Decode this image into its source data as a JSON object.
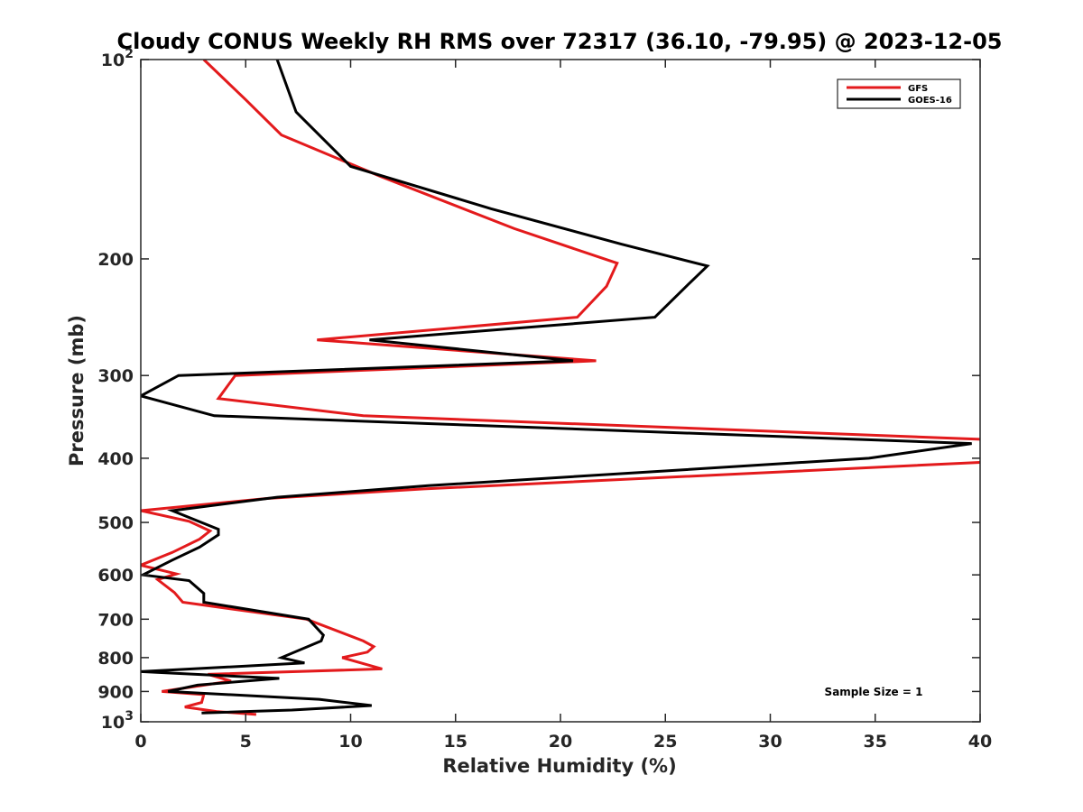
{
  "chart_data": {
    "type": "line",
    "title": "Cloudy CONUS Weekly RH RMS over 72317 (36.10, -79.95) @ 2023-12-05",
    "xlabel": "Relative Humidity (%)",
    "ylabel": "Pressure (mb)",
    "xlim": [
      0,
      40
    ],
    "ylim": [
      100,
      1000
    ],
    "yscale": "log",
    "y_reversed": true,
    "grid": false,
    "legend_position": "top-right",
    "x_ticks": [
      0,
      5,
      10,
      15,
      20,
      25,
      30,
      35,
      40
    ],
    "y_ticks": [
      {
        "value": 100,
        "base": "10",
        "exp": "2"
      },
      {
        "value": 200,
        "label": "200"
      },
      {
        "value": 300,
        "label": "300"
      },
      {
        "value": 400,
        "label": "400"
      },
      {
        "value": 500,
        "label": "500"
      },
      {
        "value": 600,
        "label": "600"
      },
      {
        "value": 700,
        "label": "700"
      },
      {
        "value": 800,
        "label": "800"
      },
      {
        "value": 900,
        "label": "900"
      },
      {
        "value": 1000,
        "base": "10",
        "exp": "3"
      }
    ],
    "annotation": "Sample Size = 1",
    "series": [
      {
        "name": "GFS",
        "color": "#e31a1c",
        "points": [
          [
            3.0,
            100
          ],
          [
            5.0,
            115
          ],
          [
            6.7,
            130
          ],
          [
            11.4,
            150
          ],
          [
            17.8,
            180
          ],
          [
            22.7,
            203
          ],
          [
            22.2,
            220
          ],
          [
            20.8,
            245
          ],
          [
            8.4,
            265
          ],
          [
            21.7,
            285
          ],
          [
            4.5,
            300
          ],
          [
            3.7,
            325
          ],
          [
            10.6,
            345
          ],
          [
            40.5,
            375
          ],
          [
            40.5,
            405
          ],
          [
            13.5,
            445
          ],
          [
            6.0,
            460
          ],
          [
            0.0,
            480
          ],
          [
            2.3,
            498
          ],
          [
            3.3,
            515
          ],
          [
            2.8,
            530
          ],
          [
            1.5,
            555
          ],
          [
            0.0,
            580
          ],
          [
            1.7,
            598
          ],
          [
            0.8,
            610
          ],
          [
            1.6,
            638
          ],
          [
            2.0,
            660
          ],
          [
            7.9,
            700
          ],
          [
            10.6,
            755
          ],
          [
            11.1,
            770
          ],
          [
            10.8,
            785
          ],
          [
            9.6,
            800
          ],
          [
            11.5,
            832
          ],
          [
            3.2,
            848
          ],
          [
            4.3,
            868
          ],
          [
            1.0,
            900
          ],
          [
            3.0,
            910
          ],
          [
            2.9,
            935
          ],
          [
            2.1,
            950
          ],
          [
            3.6,
            965
          ],
          [
            5.5,
            975
          ]
        ]
      },
      {
        "name": "GOES-16",
        "color": "#000000",
        "points": [
          [
            6.5,
            100
          ],
          [
            7.4,
            120
          ],
          [
            10.0,
            145
          ],
          [
            16.7,
            168
          ],
          [
            22.9,
            190
          ],
          [
            27.0,
            205
          ],
          [
            26.0,
            220
          ],
          [
            24.5,
            245
          ],
          [
            10.9,
            265
          ],
          [
            20.6,
            285
          ],
          [
            1.8,
            300
          ],
          [
            0.0,
            322
          ],
          [
            3.5,
            345
          ],
          [
            39.6,
            380
          ],
          [
            34.7,
            400
          ],
          [
            13.7,
            440
          ],
          [
            6.5,
            458
          ],
          [
            1.5,
            480
          ],
          [
            2.2,
            490
          ],
          [
            3.7,
            512
          ],
          [
            3.7,
            522
          ],
          [
            2.8,
            545
          ],
          [
            1.5,
            570
          ],
          [
            0.1,
            600
          ],
          [
            2.3,
            612
          ],
          [
            3.0,
            640
          ],
          [
            3.0,
            660
          ],
          [
            8.0,
            700
          ],
          [
            8.7,
            740
          ],
          [
            8.6,
            755
          ],
          [
            6.7,
            800
          ],
          [
            7.8,
            815
          ],
          [
            0.0,
            840
          ],
          [
            6.6,
            860
          ],
          [
            2.7,
            880
          ],
          [
            1.3,
            900
          ],
          [
            8.5,
            925
          ],
          [
            11.0,
            945
          ],
          [
            7.2,
            960
          ],
          [
            2.9,
            970
          ]
        ]
      }
    ]
  }
}
